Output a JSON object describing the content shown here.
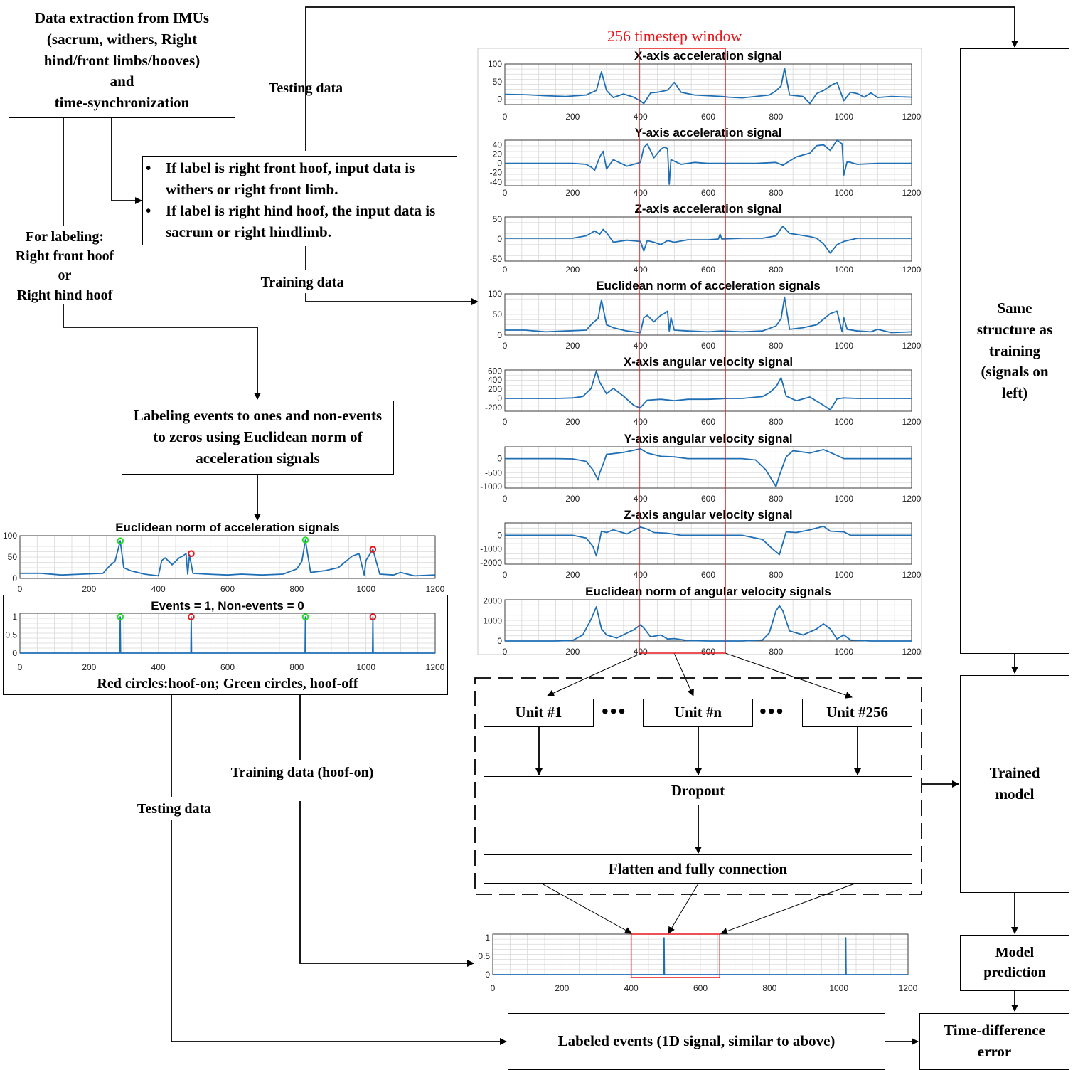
{
  "boxes": {
    "imu": "Data extraction from IMUs\n(sacrum, withers, Right\nhind/front limbs/hooves)\nand\ntime-synchronization",
    "rule1": "If label is right front hoof, input data is withers or right front limb.",
    "rule2": "If label is right hind hoof, the input data is sacrum or right hindlimb.",
    "labeling_events": "Labeling events to ones and non-events to zeros using Euclidean norm of acceleration signals",
    "unit1": "Unit #1",
    "unitn": "Unit #n",
    "unit256": "Unit #256",
    "dropout": "Dropout",
    "flatten": "Flatten and fully connection",
    "same_structure": "Same\nstructure as\ntraining\n(signals on\nleft)",
    "trained_model": "Trained\nmodel",
    "model_prediction": "Model\nprediction",
    "labeled_events": "Labeled events (1D signal, similar to above)",
    "time_diff": "Time-difference\nerror"
  },
  "labels": {
    "testing_top": "Testing data",
    "training_top": "Training data",
    "for_labeling": "For labeling:\nRight front hoof\nor\nRight hind hoof",
    "training_hoof_on": "Training data (hoof-on)",
    "testing_bottom": "Testing data",
    "window": "256 timestep window",
    "events_caption": "Red circles:hoof-on; Green circles, hoof-off",
    "dots": "•••"
  },
  "colors": {
    "signal": "#1f6fb5",
    "window": "#e8171c",
    "hoof_on": "#e8171c",
    "hoof_off": "#22dd22",
    "grid": "#d8d8d8"
  },
  "chart_data": [
    {
      "type": "line",
      "title": "X-axis acceleration signal",
      "yticks": [
        "100",
        "50",
        "0"
      ],
      "ytick_values": [
        100,
        50,
        0
      ],
      "ylim": [
        -15,
        100
      ],
      "xticks": [
        "0",
        "200",
        "400",
        "600",
        "800",
        "1000",
        "1200"
      ],
      "xlim": [
        0,
        1200
      ],
      "x": [
        0,
        60,
        120,
        180,
        240,
        270,
        285,
        300,
        320,
        350,
        380,
        400,
        410,
        430,
        450,
        480,
        500,
        520,
        560,
        600,
        640,
        660,
        700,
        740,
        780,
        800,
        815,
        825,
        840,
        880,
        900,
        920,
        940,
        960,
        980,
        1000,
        1020,
        1040,
        1060,
        1080,
        1100,
        1140,
        1200
      ],
      "y": [
        14,
        13,
        10,
        8,
        12,
        25,
        78,
        25,
        5,
        15,
        6,
        -5,
        -12,
        18,
        20,
        26,
        48,
        20,
        12,
        10,
        8,
        6,
        4,
        8,
        12,
        24,
        38,
        88,
        12,
        8,
        -12,
        16,
        25,
        38,
        48,
        -4,
        20,
        16,
        6,
        18,
        5,
        8,
        6
      ]
    },
    {
      "type": "line",
      "title": "Y-axis acceleration signal",
      "yticks": [
        "40",
        "20",
        "0",
        "-20",
        "-40"
      ],
      "ytick_values": [
        40,
        20,
        0,
        -20,
        -40
      ],
      "ylim": [
        -48,
        50
      ],
      "xticks": [
        "0",
        "200",
        "400",
        "600",
        "800",
        "1000",
        "1200"
      ],
      "xlim": [
        0,
        1200
      ],
      "x": [
        0,
        100,
        200,
        240,
        255,
        265,
        280,
        290,
        300,
        320,
        360,
        400,
        410,
        420,
        440,
        460,
        470,
        480,
        485,
        490,
        520,
        560,
        600,
        680,
        740,
        800,
        820,
        860,
        900,
        920,
        940,
        960,
        980,
        995,
        1000,
        1010,
        1040,
        1100,
        1200
      ],
      "y": [
        0,
        0,
        0,
        -2,
        -8,
        -15,
        14,
        26,
        -12,
        8,
        -6,
        2,
        34,
        42,
        12,
        30,
        35,
        32,
        -45,
        8,
        -2,
        2,
        0,
        0,
        0,
        2,
        -4,
        14,
        22,
        38,
        40,
        28,
        50,
        42,
        -25,
        4,
        -2,
        0,
        0
      ]
    },
    {
      "type": "line",
      "title": "Z-axis acceleration signal",
      "yticks": [
        "50",
        "0",
        "-50"
      ],
      "ytick_values": [
        50,
        0,
        -50
      ],
      "ylim": [
        -55,
        55
      ],
      "xticks": [
        "0",
        "200",
        "400",
        "600",
        "800",
        "1000",
        "1200"
      ],
      "xlim": [
        0,
        1200
      ],
      "x": [
        0,
        100,
        200,
        240,
        255,
        265,
        280,
        290,
        300,
        320,
        360,
        400,
        410,
        420,
        440,
        460,
        480,
        500,
        540,
        600,
        630,
        635,
        640,
        700,
        760,
        800,
        810,
        820,
        840,
        900,
        920,
        940,
        960,
        980,
        1000,
        1040,
        1100,
        1200
      ],
      "y": [
        2,
        2,
        2,
        8,
        15,
        20,
        12,
        24,
        16,
        -8,
        -3,
        -6,
        -30,
        -4,
        -8,
        -14,
        -4,
        -8,
        -2,
        -2,
        0,
        12,
        0,
        2,
        2,
        8,
        20,
        32,
        14,
        6,
        2,
        -12,
        -35,
        -14,
        -6,
        2,
        2,
        2
      ]
    },
    {
      "type": "line",
      "title": "Euclidean norm of acceleration signals",
      "yticks": [
        "100",
        "50",
        "0"
      ],
      "ytick_values": [
        100,
        50,
        0
      ],
      "ylim": [
        0,
        100
      ],
      "xticks": [
        "0",
        "200",
        "400",
        "600",
        "800",
        "1000",
        "1200"
      ],
      "xlim": [
        0,
        1200
      ],
      "x": [
        0,
        60,
        120,
        180,
        240,
        260,
        275,
        285,
        300,
        320,
        360,
        400,
        410,
        420,
        440,
        460,
        470,
        480,
        485,
        490,
        500,
        540,
        600,
        640,
        700,
        760,
        800,
        815,
        825,
        840,
        880,
        920,
        960,
        980,
        995,
        1000,
        1010,
        1040,
        1080,
        1100,
        1140,
        1200
      ],
      "y": [
        12,
        12,
        8,
        10,
        12,
        30,
        40,
        85,
        25,
        18,
        10,
        6,
        42,
        48,
        32,
        48,
        52,
        58,
        10,
        42,
        12,
        10,
        8,
        10,
        8,
        10,
        22,
        40,
        92,
        14,
        18,
        25,
        52,
        58,
        8,
        42,
        14,
        10,
        8,
        14,
        6,
        8
      ]
    },
    {
      "type": "line",
      "title": "X-axis angular velocity signal",
      "yticks": [
        "600",
        "400",
        "200",
        "0",
        "-200"
      ],
      "ytick_values": [
        600,
        400,
        200,
        0,
        -200
      ],
      "ylim": [
        -280,
        620
      ],
      "xticks": [
        "0",
        "200",
        "400",
        "600",
        "800",
        "1000",
        "1200"
      ],
      "xlim": [
        0,
        1200
      ],
      "x": [
        0,
        150,
        200,
        230,
        255,
        270,
        280,
        300,
        320,
        350,
        380,
        395,
        400,
        420,
        460,
        500,
        540,
        600,
        660,
        700,
        760,
        780,
        800,
        815,
        830,
        860,
        900,
        920,
        940,
        960,
        980,
        1000,
        1040,
        1100,
        1200
      ],
      "y": [
        0,
        0,
        10,
        40,
        220,
        600,
        350,
        100,
        220,
        50,
        -150,
        -200,
        -200,
        -40,
        -20,
        -50,
        -20,
        -20,
        0,
        0,
        40,
        120,
        250,
        450,
        50,
        -50,
        30,
        -60,
        -150,
        -250,
        -10,
        10,
        0,
        0,
        0
      ]
    },
    {
      "type": "line",
      "title": "Y-axis angular velocity signal",
      "yticks": [
        "0",
        "-500",
        "-1000"
      ],
      "ytick_values": [
        0,
        -500,
        -1000
      ],
      "ylim": [
        -1050,
        420
      ],
      "xticks": [
        "0",
        "200",
        "400",
        "600",
        "800",
        "1000",
        "1200"
      ],
      "xlim": [
        0,
        1200
      ],
      "x": [
        0,
        150,
        200,
        240,
        260,
        275,
        280,
        290,
        300,
        350,
        400,
        420,
        460,
        500,
        540,
        600,
        660,
        700,
        740,
        770,
        790,
        800,
        810,
        830,
        850,
        900,
        940,
        960,
        1000,
        1060,
        1100,
        1200
      ],
      "y": [
        0,
        0,
        -10,
        -100,
        -400,
        -760,
        -500,
        -200,
        150,
        220,
        350,
        200,
        80,
        60,
        0,
        0,
        0,
        0,
        -50,
        -400,
        -800,
        -1000,
        -600,
        60,
        280,
        200,
        320,
        220,
        0,
        0,
        0,
        0
      ]
    },
    {
      "type": "line",
      "title": "Z-axis angular velocity signal",
      "yticks": [
        "0",
        "-1000",
        "-2000"
      ],
      "ytick_values": [
        0,
        -1000,
        -2000
      ],
      "ylim": [
        -2100,
        900
      ],
      "xticks": [
        "0",
        "200",
        "400",
        "600",
        "800",
        "1000",
        "1200"
      ],
      "xlim": [
        0,
        1200
      ],
      "x": [
        0,
        150,
        200,
        240,
        260,
        270,
        285,
        300,
        320,
        360,
        400,
        420,
        440,
        480,
        520,
        600,
        700,
        760,
        790,
        810,
        830,
        860,
        900,
        940,
        960,
        1000,
        1020,
        1080,
        1200
      ],
      "y": [
        0,
        0,
        0,
        -200,
        -800,
        -1500,
        300,
        200,
        400,
        100,
        600,
        450,
        200,
        150,
        0,
        0,
        0,
        -300,
        -1000,
        -1400,
        250,
        200,
        400,
        650,
        300,
        250,
        0,
        0,
        0
      ]
    },
    {
      "type": "line",
      "title": "Euclidean norm of angular velocity signals",
      "yticks": [
        "2000",
        "1000",
        "0"
      ],
      "ytick_values": [
        2000,
        1000,
        0
      ],
      "ylim": [
        0,
        2050
      ],
      "xticks": [
        "0",
        "200",
        "400",
        "600",
        "800",
        "1000",
        "1200"
      ],
      "xlim": [
        0,
        1200
      ],
      "x": [
        0,
        150,
        200,
        230,
        255,
        270,
        285,
        300,
        330,
        380,
        400,
        410,
        430,
        460,
        480,
        500,
        540,
        600,
        700,
        760,
        780,
        800,
        810,
        820,
        840,
        880,
        920,
        940,
        960,
        980,
        1000,
        1020,
        1080,
        1200
      ],
      "y": [
        0,
        0,
        30,
        300,
        1100,
        1700,
        600,
        300,
        150,
        550,
        800,
        650,
        200,
        300,
        100,
        120,
        20,
        0,
        0,
        50,
        400,
        1500,
        1750,
        1500,
        500,
        300,
        600,
        850,
        600,
        100,
        300,
        50,
        0,
        0
      ]
    },
    {
      "type": "line",
      "title": "Euclidean norm of acceleration signals",
      "yticks": [
        "100",
        "50",
        "0"
      ],
      "ytick_values": [
        100,
        50,
        0
      ],
      "ylim": [
        0,
        100
      ],
      "xticks": [
        "0",
        "200",
        "400",
        "600",
        "800",
        "1000",
        "1200"
      ],
      "xlim": [
        0,
        1200
      ],
      "x": [
        0,
        60,
        120,
        180,
        240,
        260,
        275,
        290,
        300,
        320,
        360,
        400,
        410,
        420,
        440,
        460,
        470,
        480,
        485,
        490,
        500,
        540,
        600,
        640,
        700,
        760,
        800,
        815,
        825,
        840,
        880,
        920,
        960,
        980,
        995,
        1000,
        1010,
        1020,
        1040,
        1080,
        1100,
        1140,
        1200
      ],
      "y": [
        12,
        12,
        8,
        10,
        12,
        30,
        40,
        88,
        25,
        18,
        10,
        6,
        42,
        48,
        32,
        48,
        52,
        58,
        10,
        55,
        12,
        10,
        8,
        10,
        8,
        10,
        22,
        40,
        90,
        14,
        18,
        25,
        52,
        58,
        8,
        42,
        55,
        68,
        10,
        8,
        14,
        6,
        8
      ],
      "markers": [
        {
          "x": 290,
          "y": 88,
          "type": "hoof-off"
        },
        {
          "x": 495,
          "y": 58,
          "type": "hoof-on"
        },
        {
          "x": 825,
          "y": 90,
          "type": "hoof-off"
        },
        {
          "x": 1020,
          "y": 68,
          "type": "hoof-on"
        }
      ]
    },
    {
      "type": "line",
      "title": "Events = 1, Non-events = 0",
      "yticks": [
        "1",
        "0.5",
        "0"
      ],
      "ytick_values": [
        1,
        0.5,
        0
      ],
      "ylim": [
        0,
        1.1
      ],
      "xticks": [
        "0",
        "200",
        "400",
        "600",
        "800",
        "1000",
        "1200"
      ],
      "xlim": [
        0,
        1200
      ],
      "x": [
        0,
        289,
        290,
        291,
        494,
        495,
        496,
        824,
        825,
        826,
        1019,
        1020,
        1021,
        1200
      ],
      "y": [
        0,
        0,
        1,
        0,
        0,
        1,
        0,
        0,
        1,
        0,
        0,
        1,
        0,
        0
      ],
      "markers": [
        {
          "x": 290,
          "y": 1,
          "type": "hoof-off"
        },
        {
          "x": 495,
          "y": 1,
          "type": "hoof-on"
        },
        {
          "x": 825,
          "y": 1,
          "type": "hoof-off"
        },
        {
          "x": 1020,
          "y": 1,
          "type": "hoof-on"
        }
      ]
    },
    {
      "type": "line",
      "title": "",
      "yticks": [
        "1",
        "0.5",
        "0"
      ],
      "ytick_values": [
        1,
        0.5,
        0
      ],
      "ylim": [
        0,
        1.1
      ],
      "xticks": [
        "0",
        "200",
        "400",
        "600",
        "800",
        "1000",
        "1200"
      ],
      "xlim": [
        0,
        1200
      ],
      "x": [
        0,
        494,
        495,
        496,
        1019,
        1020,
        1021,
        1200
      ],
      "y": [
        0,
        0,
        1,
        0,
        0,
        1,
        0,
        0
      ]
    }
  ]
}
